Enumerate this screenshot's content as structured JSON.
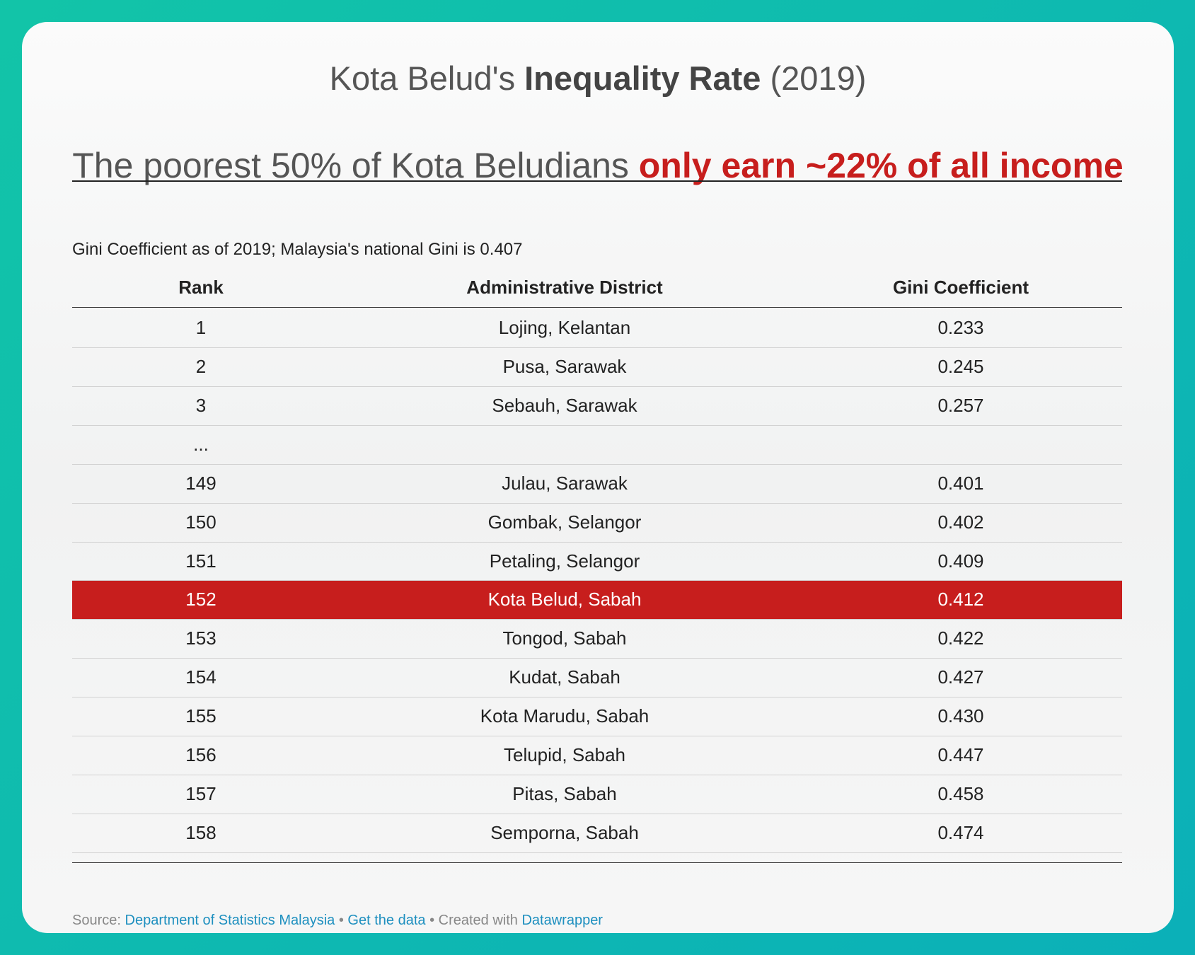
{
  "header": {
    "title": {
      "lead": "Kota Belud's ",
      "bold": "Inequality Rate",
      "tail": " (2019)"
    },
    "subtitle": {
      "lead": "The poorest 50% of Kota Beludians ",
      "highlight": "only earn ~22% of all income"
    },
    "description": "Gini Coefficient as of 2019; Malaysia's national Gini is 0.407"
  },
  "table": {
    "columns": [
      "Rank",
      "Administrative District",
      "Gini Coefficient"
    ],
    "rows": [
      {
        "cells": [
          "1",
          "Lojing, Kelantan",
          "0.233"
        ]
      },
      {
        "cells": [
          "2",
          "Pusa, Sarawak",
          "0.245"
        ]
      },
      {
        "cells": [
          "3",
          "Sebauh, Sarawak",
          "0.257"
        ]
      },
      {
        "cells": [
          "..."
        ]
      },
      {
        "cells": [
          "149",
          "Julau, Sarawak",
          "0.401"
        ]
      },
      {
        "cells": [
          "150",
          "Gombak, Selangor",
          "0.402"
        ]
      },
      {
        "cells": [
          "151",
          "Petaling, Selangor",
          "0.409"
        ]
      },
      {
        "cells": [
          "152",
          "Kota Belud, Sabah",
          "0.412"
        ],
        "highlighted": true
      },
      {
        "cells": [
          "153",
          "Tongod, Sabah",
          "0.422"
        ]
      },
      {
        "cells": [
          "154",
          "Kudat, Sabah",
          "0.427"
        ]
      },
      {
        "cells": [
          "155",
          "Kota Marudu, Sabah",
          "0.430"
        ]
      },
      {
        "cells": [
          "156",
          "Telupid, Sabah",
          "0.447"
        ]
      },
      {
        "cells": [
          "157",
          "Pitas, Sabah",
          "0.458"
        ]
      },
      {
        "cells": [
          "158",
          "Semporna, Sabah",
          "0.474"
        ]
      }
    ]
  },
  "footer": {
    "source_label": "Source:",
    "source_link": "Department of Statistics Malaysia",
    "sep1": "•",
    "data_link": "Get the data",
    "created": "• Created with",
    "tool_link": "Datawrapper"
  }
}
